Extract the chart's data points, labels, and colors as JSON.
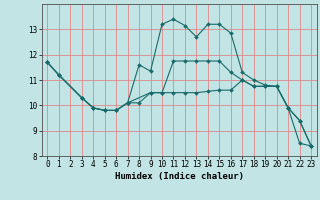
{
  "xlabel": "Humidex (Indice chaleur)",
  "xlim": [
    -0.5,
    23.5
  ],
  "ylim": [
    8,
    14
  ],
  "yticks": [
    8,
    9,
    10,
    11,
    12,
    13
  ],
  "xticks": [
    0,
    1,
    2,
    3,
    4,
    5,
    6,
    7,
    8,
    9,
    10,
    11,
    12,
    13,
    14,
    15,
    16,
    17,
    18,
    19,
    20,
    21,
    22,
    23
  ],
  "background_color": "#c2e4e4",
  "grid_color": "#e08888",
  "line_color": "#1a6b6b",
  "line1_x": [
    0,
    1,
    3,
    4,
    5,
    6,
    7,
    8,
    9,
    10,
    11,
    12,
    13,
    14,
    15,
    16,
    17,
    18,
    19,
    20,
    21,
    22,
    23
  ],
  "line1_y": [
    11.7,
    11.2,
    10.3,
    9.9,
    9.8,
    9.8,
    10.1,
    11.6,
    11.35,
    13.2,
    13.4,
    13.15,
    12.7,
    13.2,
    13.2,
    12.85,
    11.3,
    11.0,
    10.8,
    10.75,
    9.9,
    9.4,
    8.4
  ],
  "line2_x": [
    0,
    1,
    3,
    4,
    5,
    6,
    7,
    9,
    10,
    11,
    12,
    13,
    14,
    15,
    16,
    17,
    18,
    19,
    20,
    21,
    22,
    23
  ],
  "line2_y": [
    11.7,
    11.2,
    10.3,
    9.9,
    9.8,
    9.8,
    10.1,
    10.5,
    10.5,
    10.5,
    10.5,
    10.5,
    10.55,
    10.6,
    10.6,
    11.0,
    10.75,
    10.75,
    10.75,
    9.9,
    8.5,
    8.4
  ],
  "line3_x": [
    0,
    1,
    3,
    4,
    5,
    6,
    7,
    8,
    9,
    10,
    11,
    12,
    13,
    14,
    15,
    16,
    17,
    18,
    19,
    20,
    21,
    22,
    23
  ],
  "line3_y": [
    11.7,
    11.2,
    10.3,
    9.9,
    9.8,
    9.8,
    10.1,
    10.1,
    10.5,
    10.5,
    11.75,
    11.75,
    11.75,
    11.75,
    11.75,
    11.3,
    11.0,
    10.75,
    10.75,
    10.75,
    9.9,
    9.4,
    8.4
  ]
}
